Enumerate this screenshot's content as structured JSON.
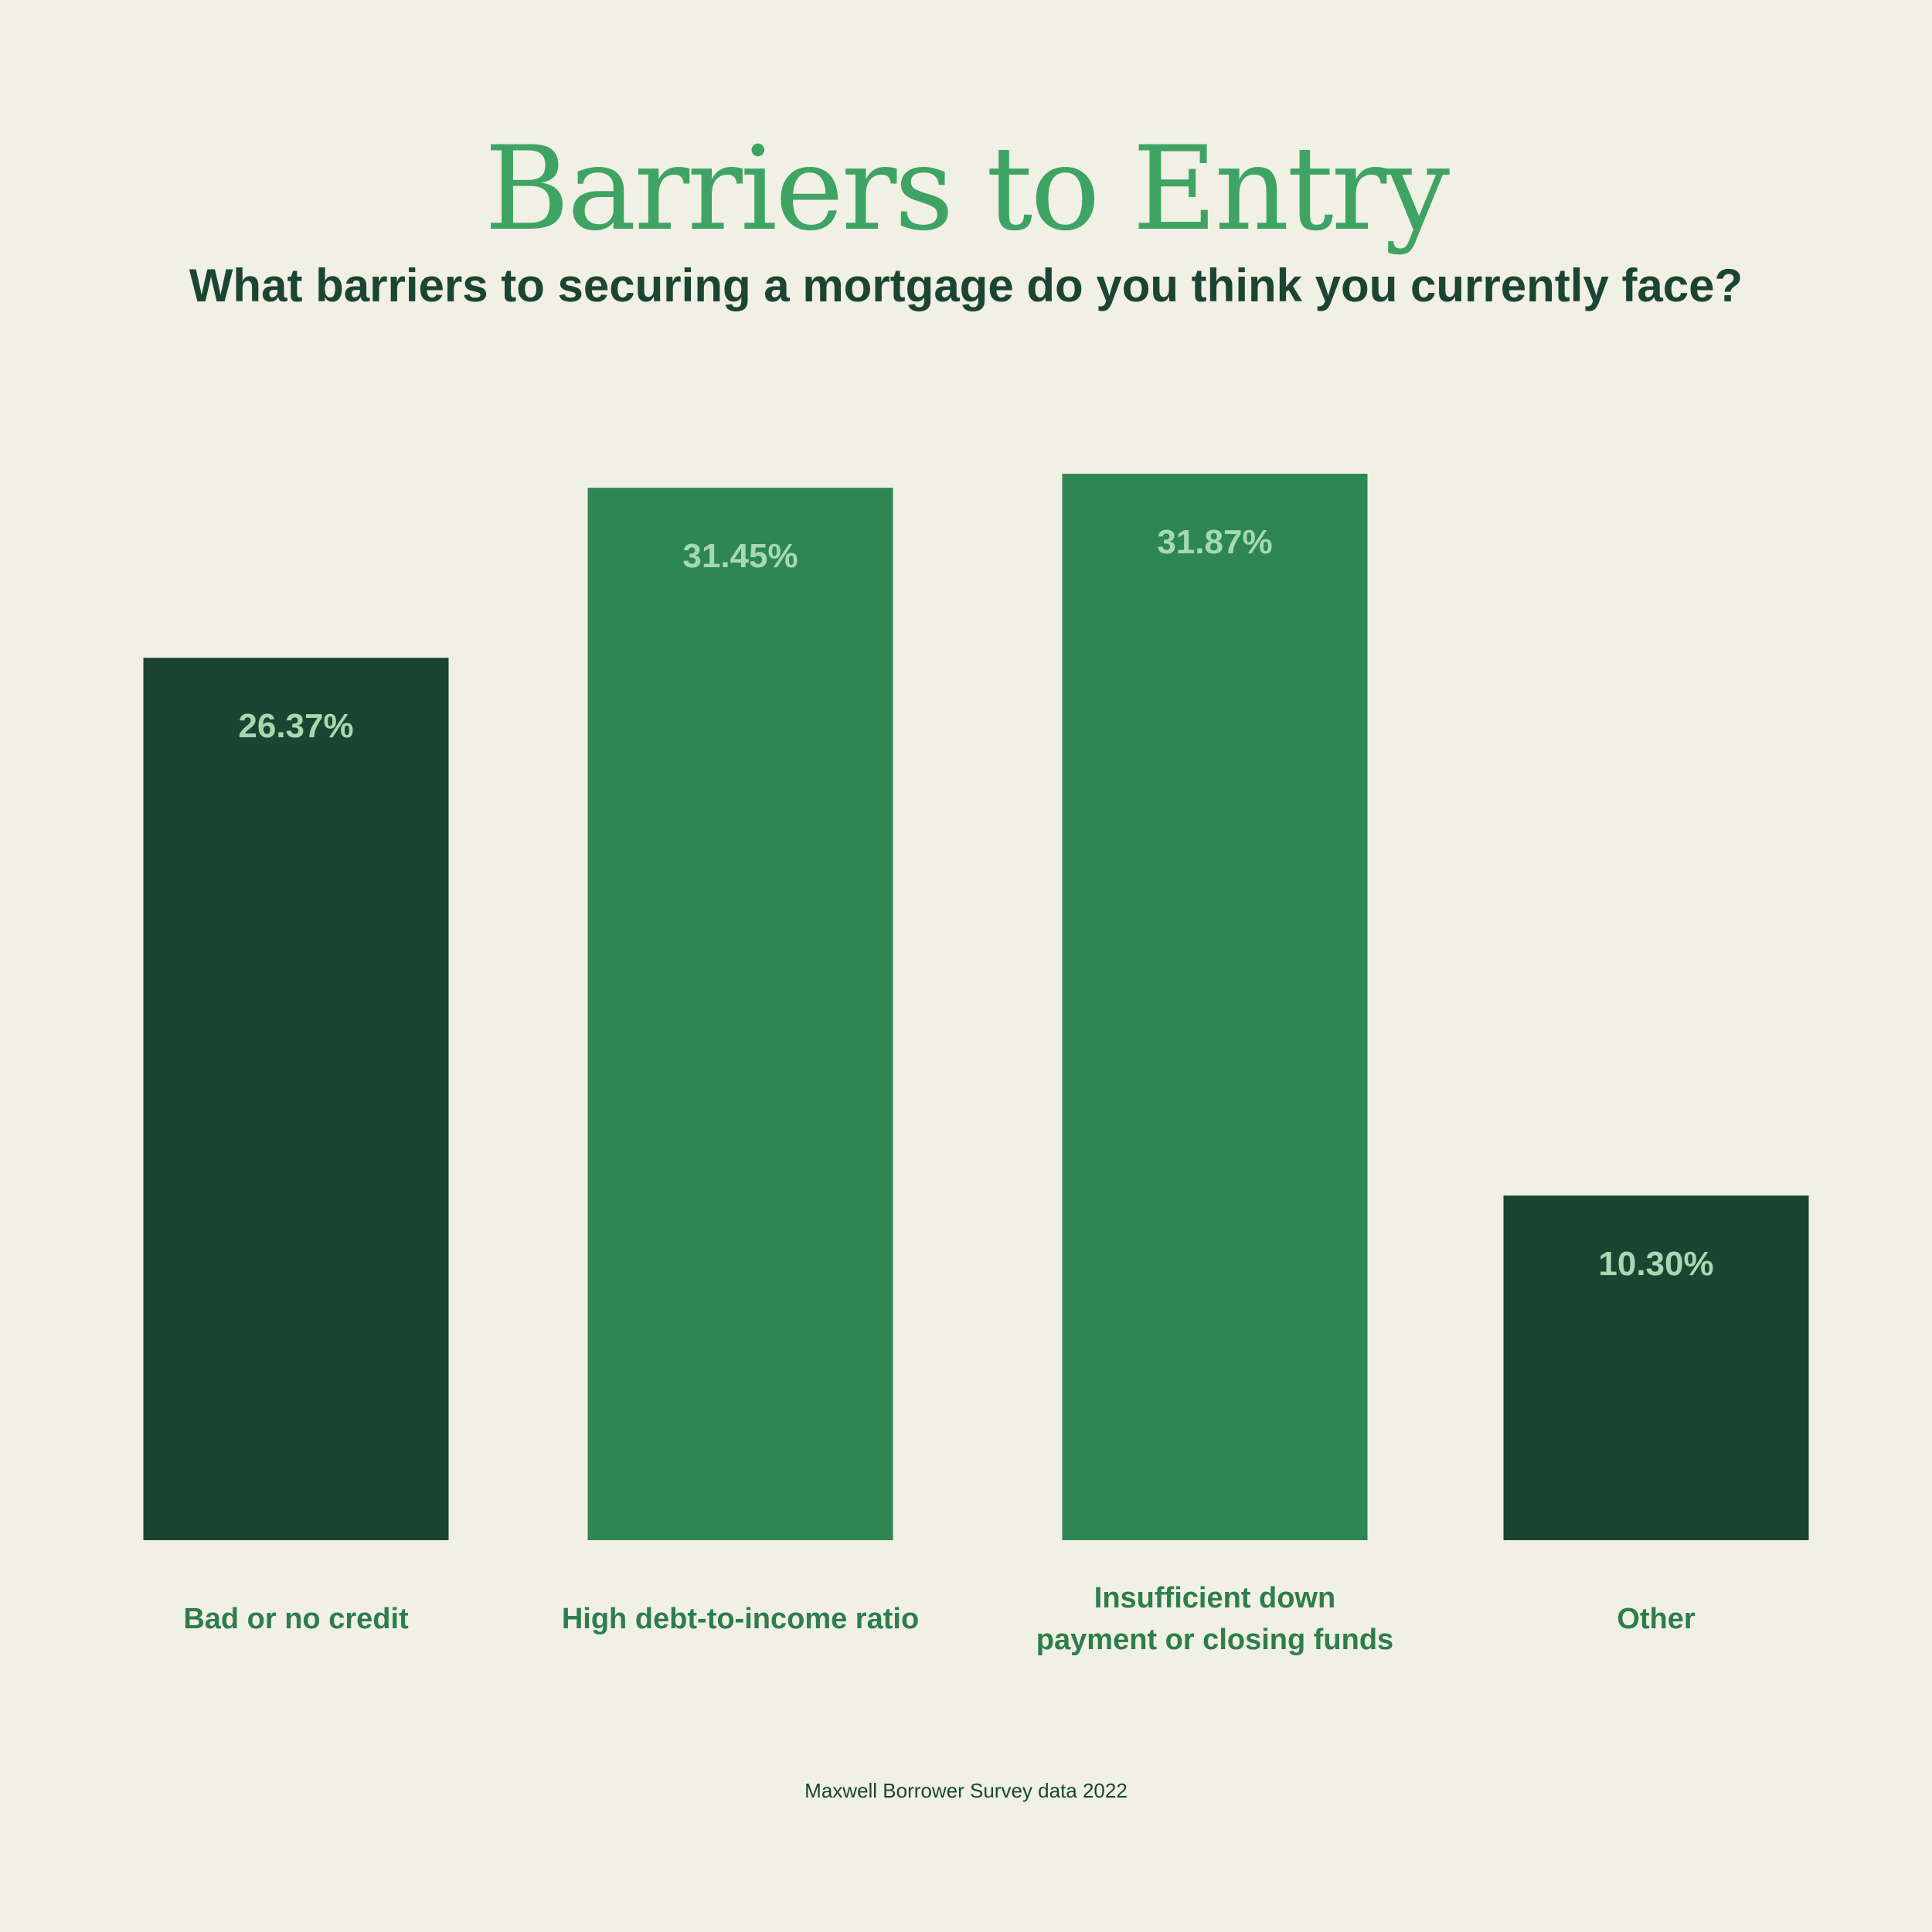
{
  "header": {
    "title": "Barriers to Entry",
    "subtitle": "What barriers to securing a mortgage do you think you currently face?"
  },
  "footer": {
    "source": "Maxwell Borrower Survey data 2022"
  },
  "chart_data": {
    "type": "bar",
    "categories": [
      [
        "Bad or no credit"
      ],
      [
        "High debt-to-income ratio"
      ],
      [
        "Insufficient down",
        "payment or closing funds"
      ],
      [
        "Other"
      ]
    ],
    "values": [
      26.37,
      31.45,
      31.87,
      10.3
    ],
    "value_labels": [
      "26.37%",
      "31.45%",
      "31.87%",
      "10.30%"
    ],
    "bar_colors": [
      "#1b4532",
      "#2e8653",
      "#2e8653",
      "#1b4532"
    ],
    "value_label_color": "#a6d9b0",
    "category_label_color": "#2e7d4c",
    "ylim": [
      0,
      31.87
    ],
    "grid": false,
    "legend": "none"
  }
}
